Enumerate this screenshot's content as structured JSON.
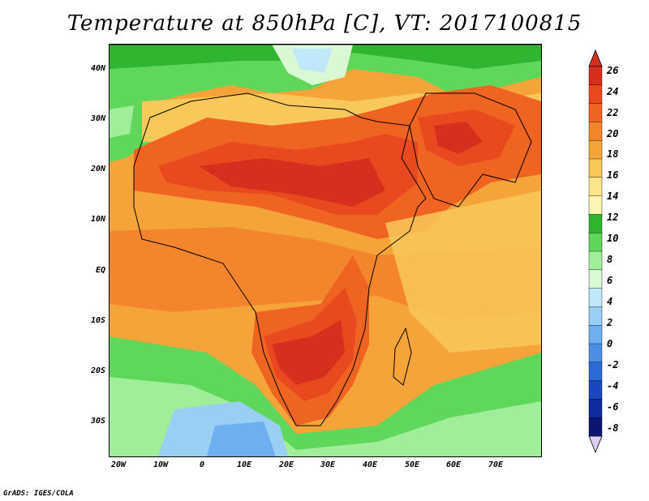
{
  "title": "Temperature at 850hPa [C], VT: 2017100815",
  "lat_labels": [
    "40N",
    "30N",
    "20N",
    "10N",
    "EQ",
    "10S",
    "20S",
    "30S"
  ],
  "lon_labels": [
    "20W",
    "10W",
    "0",
    "10E",
    "20E",
    "30E",
    "40E",
    "50E",
    "60E",
    "70E"
  ],
  "colorbar": {
    "labels": [
      "26",
      "24",
      "22",
      "20",
      "18",
      "16",
      "14",
      "12",
      "10",
      "8",
      "6",
      "4",
      "2",
      "0",
      "-2",
      "-4",
      "-6",
      "-8"
    ],
    "colors": [
      "#d62f1e",
      "#e8491e",
      "#f06422",
      "#f3852c",
      "#f5a43a",
      "#f9c85a",
      "#fde48a",
      "#fdf5b4",
      "#2fb52f",
      "#5fd75a",
      "#a0ee99",
      "#daf8d3",
      "#bfe8fb",
      "#98cff3",
      "#6eaff0",
      "#4b8ee3",
      "#2a6bd6",
      "#1a47bd",
      "#0e2a9c",
      "#0b1670"
    ]
  },
  "credit": "GrADS: IGES/COLA"
}
